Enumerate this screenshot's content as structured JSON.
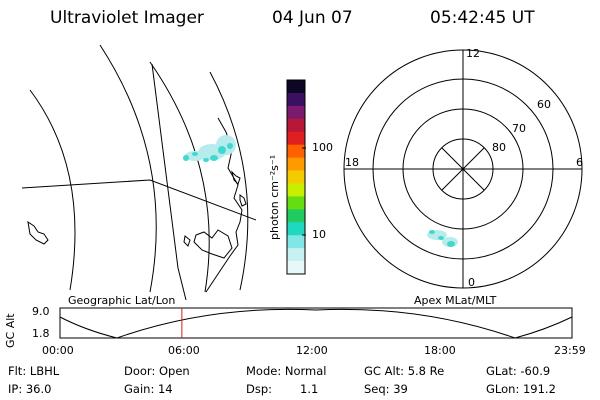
{
  "header": {
    "title": "Ultraviolet Imager",
    "date": "04 Jun 07",
    "time": "05:42:45 UT"
  },
  "colorbar": {
    "label": "photon cm⁻²s⁻¹",
    "ticks": [
      "100",
      "10"
    ],
    "colors": [
      "#0d0625",
      "#3a1060",
      "#7a1b6e",
      "#b81838",
      "#e02020",
      "#ff6000",
      "#ff9a00",
      "#f2cc00",
      "#c8ee00",
      "#66dd10",
      "#20cc60",
      "#20d8c0",
      "#80e6e6",
      "#c8f0f0",
      "#e8f8f8"
    ]
  },
  "polar_plot": {
    "hour_labels": [
      "12",
      "18",
      "6",
      "0"
    ],
    "lat_labels": [
      "60",
      "70",
      "80"
    ]
  },
  "panel_titles": {
    "left": "Geographic Lat/Lon",
    "right": "Apex MLat/MLT"
  },
  "altitude_strip": {
    "axis_label": "GC Alt",
    "y_ticks": [
      "9.0",
      "1.8"
    ],
    "x_ticks": [
      "00:00",
      "06:00",
      "12:00",
      "18:00",
      "23:59"
    ],
    "current_time_fraction": 0.238,
    "marker_color": "#cc2222"
  },
  "info": {
    "flt": "Flt: LBHL",
    "ip": "IP: 36.0",
    "door": "Door: Open",
    "gain": "Gain: 14",
    "mode": "Mode: Normal",
    "dsp_label": "Dsp:",
    "dsp_value": "1.1",
    "gc_alt": "GC Alt: 5.8 Re",
    "seq": "Seq: 39",
    "glat": "GLat: -60.9",
    "glon": "GLon: 191.2"
  },
  "colors": {
    "aurora": "#40d8d0",
    "aurora_light": "#b8ecec"
  }
}
